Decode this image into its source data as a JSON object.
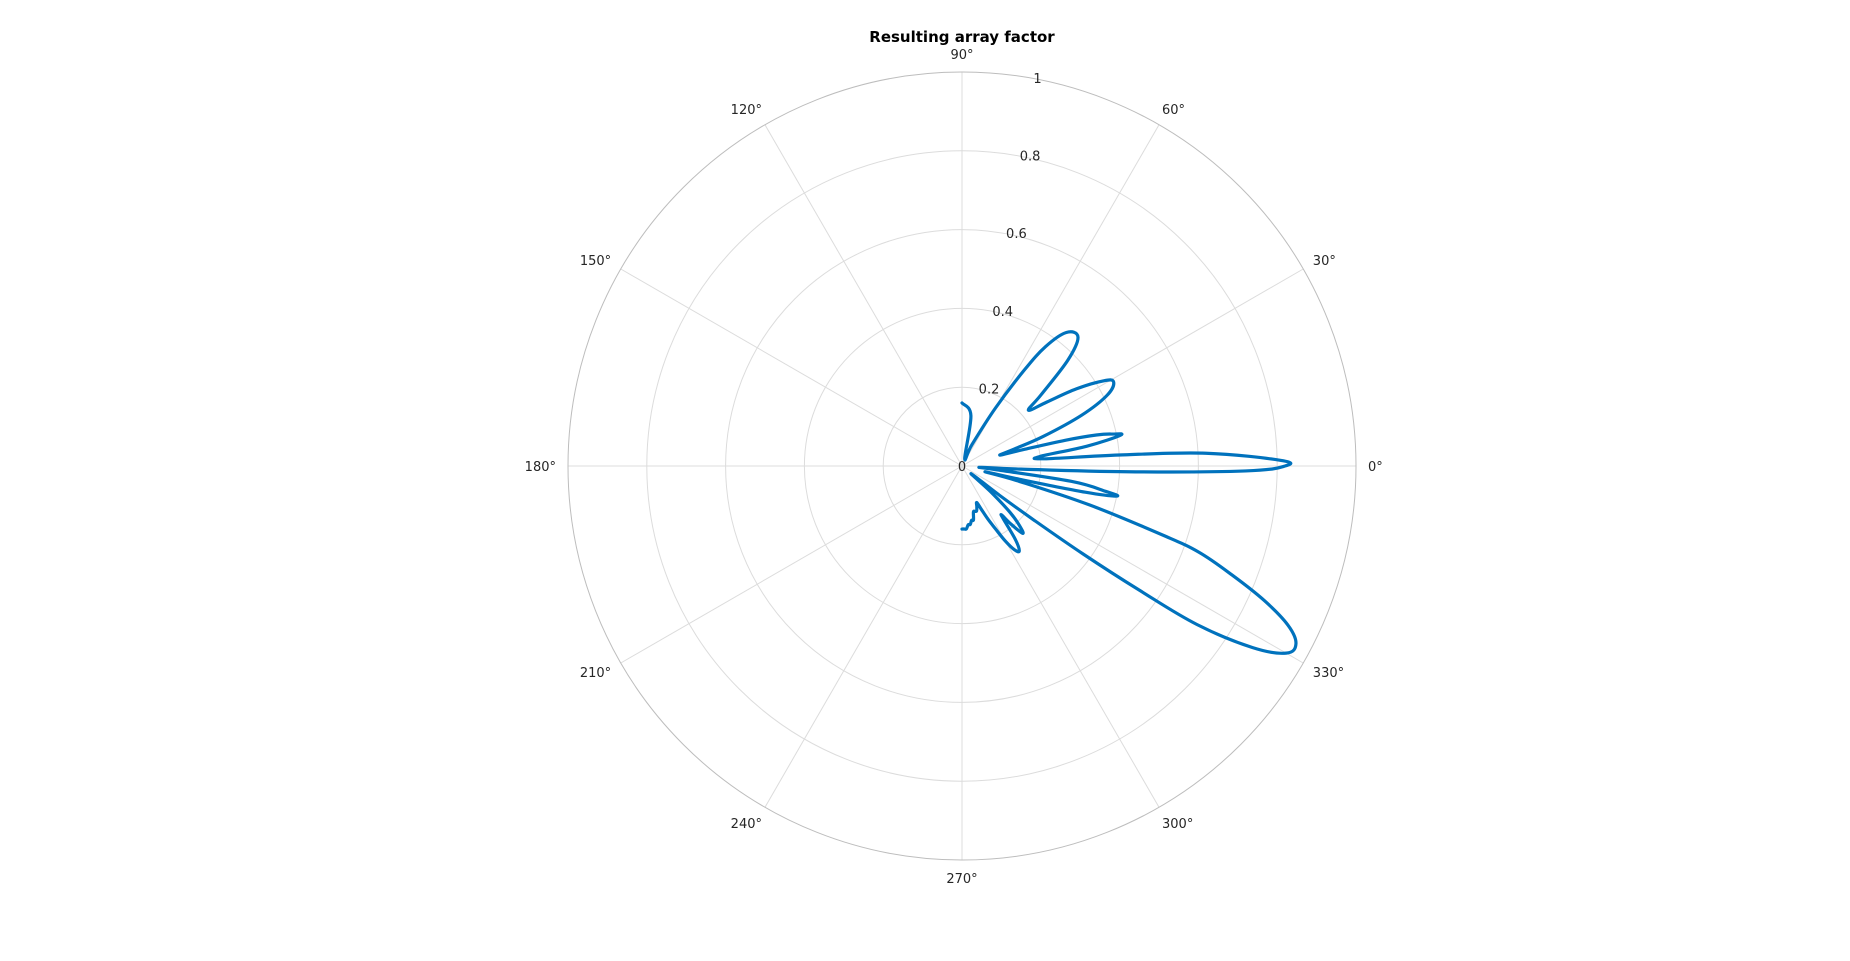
{
  "chart_data": {
    "type": "polar-line",
    "title": "Resulting array factor",
    "theta_unit": "degrees",
    "theta_ticks": [
      0,
      30,
      60,
      90,
      120,
      150,
      180,
      210,
      240,
      270,
      300,
      330
    ],
    "theta_tick_labels": [
      "0°",
      "30°",
      "60°",
      "90°",
      "120°",
      "150°",
      "180°",
      "210°",
      "240°",
      "270°",
      "300°",
      "330°"
    ],
    "r_ticks": [
      0,
      0.2,
      0.4,
      0.6,
      0.8,
      1
    ],
    "r_tick_labels": [
      "0",
      "0.2",
      "0.4",
      "0.6",
      "0.8",
      "1"
    ],
    "r_lim": [
      0,
      1
    ],
    "r_label_angle_deg": 80,
    "grid": true,
    "line_color": "#0072BD",
    "series": [
      {
        "theta_deg": [
          90,
          80,
          70,
          65,
          60,
          57,
          55,
          52,
          48,
          45,
          42,
          40,
          37,
          34,
          31,
          29,
          26,
          23,
          20,
          18,
          16,
          15,
          14,
          13,
          12,
          11,
          9,
          7,
          5,
          4,
          3,
          1,
          0,
          -1,
          -2,
          -3,
          -4,
          -6,
          -8,
          -10,
          -11,
          -12,
          -13,
          -14,
          -15,
          -17,
          -19,
          -20,
          -22,
          -24,
          -26,
          -28,
          -30,
          -32,
          -34,
          -35,
          -36,
          -37,
          -38,
          -40,
          -42,
          -44,
          -46,
          -48,
          -50,
          -51,
          -52,
          -54,
          -56,
          -58,
          -60,
          -62,
          -64,
          -66,
          -68,
          -70,
          -72,
          -74,
          -76,
          -78,
          -80,
          -82,
          -84,
          -86,
          -88,
          -90
        ],
        "r": [
          0.16,
          0.13,
          0.02,
          0.06,
          0.17,
          0.29,
          0.37,
          0.43,
          0.44,
          0.38,
          0.27,
          0.22,
          0.27,
          0.35,
          0.42,
          0.44,
          0.41,
          0.33,
          0.22,
          0.14,
          0.1,
          0.16,
          0.27,
          0.35,
          0.39,
          0.41,
          0.32,
          0.2,
          0.21,
          0.4,
          0.62,
          0.81,
          0.82,
          0.72,
          0.42,
          0.15,
          0.05,
          0.08,
          0.28,
          0.37,
          0.4,
          0.32,
          0.15,
          0.06,
          0.15,
          0.34,
          0.54,
          0.64,
          0.74,
          0.84,
          0.92,
          0.96,
          0.95,
          0.87,
          0.72,
          0.55,
          0.38,
          0.22,
          0.12,
          0.03,
          0.1,
          0.17,
          0.21,
          0.23,
          0.19,
          0.16,
          0.17,
          0.23,
          0.26,
          0.25,
          0.22,
          0.18,
          0.15,
          0.12,
          0.1,
          0.11,
          0.12,
          0.12,
          0.12,
          0.14,
          0.14,
          0.15,
          0.15,
          0.16,
          0.16,
          0.16
        ]
      }
    ]
  }
}
